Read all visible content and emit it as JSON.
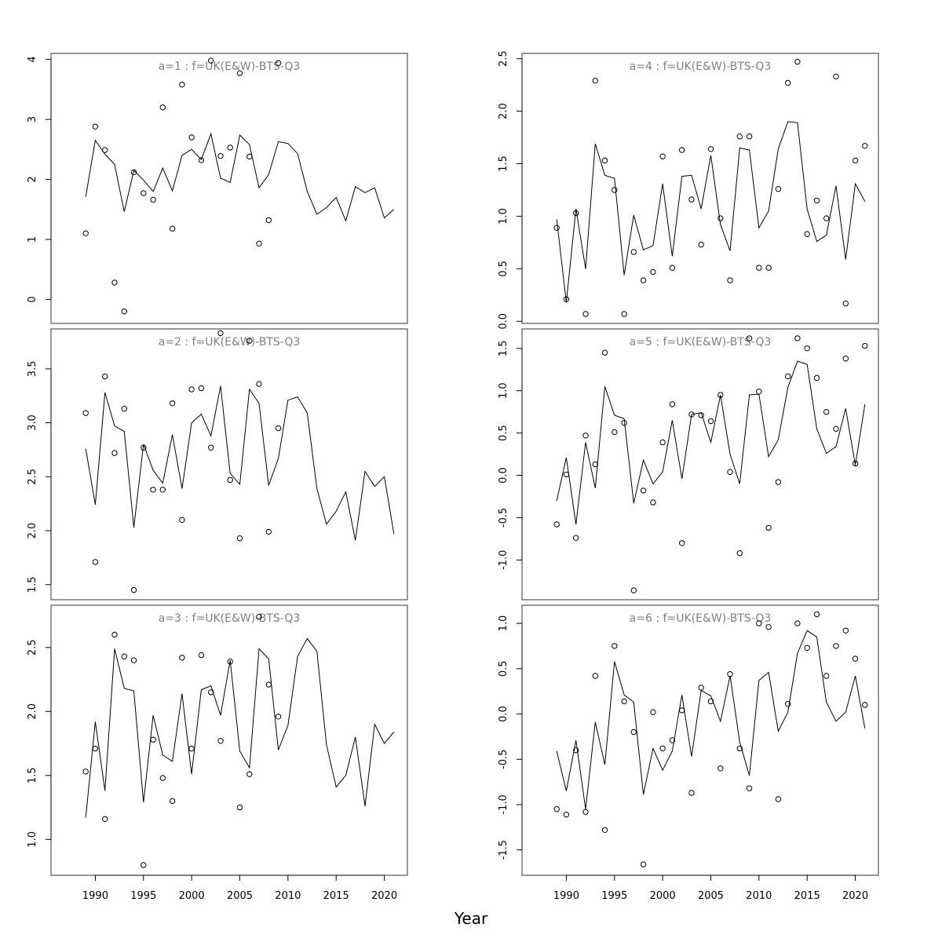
{
  "figure": {
    "xlabel": "Year"
  },
  "chart_data": [
    {
      "type": "line",
      "title": "a=1  :  f=UK(E&W)-BTS-Q3",
      "ylim": [
        -0.4,
        4.1
      ],
      "yticks": [
        0,
        1,
        2,
        3,
        4
      ],
      "ytick_labels": [
        "0",
        "1",
        "2",
        "3",
        "4"
      ],
      "xlim": [
        1985.4,
        2022.4
      ],
      "xticks": [
        1990,
        1995,
        2000,
        2005,
        2010,
        2015,
        2020
      ],
      "xtick_labels": [
        "1990",
        "1995",
        "2000",
        "2005",
        "2010",
        "2015",
        "2020"
      ],
      "show_xaxis": false,
      "series": [
        {
          "style": "line",
          "x": [
            1989,
            1990,
            1991,
            1992,
            1993,
            1994,
            1995,
            1996,
            1997,
            1998,
            1999,
            2000,
            2001,
            2002,
            2003,
            2004,
            2005,
            2006,
            2007,
            2008,
            2009,
            2010,
            2011,
            2012,
            2013,
            2014,
            2015,
            2016,
            2017,
            2018,
            2019,
            2020,
            2021
          ],
          "y": [
            1.71,
            2.65,
            2.42,
            2.25,
            1.46,
            2.15,
            1.99,
            1.8,
            2.19,
            1.81,
            2.4,
            2.5,
            2.33,
            2.76,
            2.02,
            1.95,
            2.74,
            2.58,
            1.86,
            2.08,
            2.63,
            2.6,
            2.43,
            1.8,
            1.42,
            1.53,
            1.7,
            1.31,
            1.88,
            1.78,
            1.86,
            1.36,
            1.5
          ]
        },
        {
          "style": "points",
          "x": [
            1989,
            1990,
            1991,
            1992,
            1993,
            1994,
            1995,
            1996,
            1997,
            1998,
            1999,
            2000,
            2001,
            2002,
            2003,
            2004,
            2005,
            2006,
            2007,
            2008,
            2009
          ],
          "y": [
            1.1,
            2.88,
            2.49,
            0.28,
            -0.2,
            2.12,
            1.77,
            1.66,
            3.2,
            1.18,
            3.58,
            2.7,
            2.32,
            3.98,
            2.39,
            2.53,
            3.77,
            2.38,
            0.93,
            1.32,
            3.94
          ]
        }
      ]
    },
    {
      "type": "line",
      "title": "a=4  :  f=UK(E&W)-BTS-Q3",
      "ylim": [
        -0.02,
        2.55
      ],
      "yticks": [
        0.0,
        0.5,
        1.0,
        1.5,
        2.0,
        2.5
      ],
      "ytick_labels": [
        "0.0",
        "0.5",
        "1.0",
        "1.5",
        "2.0",
        "2.5"
      ],
      "xlim": [
        1985.4,
        2022.4
      ],
      "xticks": [
        1990,
        1995,
        2000,
        2005,
        2010,
        2015,
        2020
      ],
      "xtick_labels": [
        "1990",
        "1995",
        "2000",
        "2005",
        "2010",
        "2015",
        "2020"
      ],
      "show_xaxis": false,
      "series": [
        {
          "style": "line",
          "x": [
            1989,
            1990,
            1991,
            1992,
            1993,
            1994,
            1995,
            1996,
            1997,
            1998,
            1999,
            2000,
            2001,
            2002,
            2003,
            2004,
            2005,
            2006,
            2007,
            2008,
            2009,
            2010,
            2011,
            2012,
            2013,
            2014,
            2015,
            2016,
            2017,
            2018,
            2019,
            2020,
            2021
          ],
          "y": [
            0.97,
            0.18,
            1.07,
            0.5,
            1.69,
            1.39,
            1.36,
            0.44,
            1.01,
            0.68,
            0.72,
            1.31,
            0.62,
            1.38,
            1.39,
            1.07,
            1.58,
            0.92,
            0.67,
            1.65,
            1.63,
            0.89,
            1.05,
            1.64,
            1.9,
            1.89,
            1.07,
            0.76,
            0.82,
            1.29,
            0.59,
            1.31,
            1.14
          ]
        },
        {
          "style": "points",
          "x": [
            1989,
            1990,
            1991,
            1992,
            1993,
            1994,
            1995,
            1996,
            1997,
            1998,
            1999,
            2000,
            2001,
            2002,
            2003,
            2004,
            2005,
            2006,
            2007,
            2008,
            2009,
            2010,
            2011,
            2012,
            2013,
            2014,
            2015,
            2016,
            2017,
            2018,
            2019,
            2020,
            2021
          ],
          "y": [
            0.89,
            0.21,
            1.03,
            0.07,
            2.29,
            1.53,
            1.25,
            0.07,
            0.66,
            0.39,
            0.47,
            1.57,
            0.51,
            1.63,
            1.16,
            0.73,
            1.64,
            0.98,
            0.39,
            1.76,
            1.76,
            0.51,
            0.51,
            1.26,
            2.27,
            2.47,
            0.83,
            1.15,
            0.98,
            2.33,
            0.17,
            1.53,
            1.67
          ]
        }
      ]
    },
    {
      "type": "line",
      "title": "a=2  :  f=UK(E&W)-BTS-Q3",
      "ylim": [
        1.36,
        3.87
      ],
      "yticks": [
        1.5,
        2.0,
        2.5,
        3.0,
        3.5
      ],
      "ytick_labels": [
        "1.5",
        "2.0",
        "2.5",
        "3.0",
        "3.5"
      ],
      "xlim": [
        1985.4,
        2022.4
      ],
      "xticks": [
        1990,
        1995,
        2000,
        2005,
        2010,
        2015,
        2020
      ],
      "xtick_labels": [
        "1990",
        "1995",
        "2000",
        "2005",
        "2010",
        "2015",
        "2020"
      ],
      "show_xaxis": false,
      "series": [
        {
          "style": "line",
          "x": [
            1989,
            1990,
            1991,
            1992,
            1993,
            1994,
            1995,
            1996,
            1997,
            1998,
            1999,
            2000,
            2001,
            2002,
            2003,
            2004,
            2005,
            2006,
            2007,
            2008,
            2009,
            2010,
            2011,
            2012,
            2013,
            2014,
            2015,
            2016,
            2017,
            2018,
            2019,
            2020,
            2021
          ],
          "y": [
            2.76,
            2.24,
            3.28,
            2.97,
            2.92,
            2.03,
            2.8,
            2.56,
            2.44,
            2.89,
            2.39,
            3.0,
            3.08,
            2.88,
            3.34,
            2.53,
            2.43,
            3.31,
            3.18,
            2.42,
            2.67,
            3.21,
            3.24,
            3.09,
            2.39,
            2.06,
            2.18,
            2.36,
            1.91,
            2.55,
            2.41,
            2.5,
            1.97
          ]
        },
        {
          "style": "points",
          "x": [
            1989,
            1990,
            1991,
            1992,
            1993,
            1994,
            1995,
            1996,
            1997,
            1998,
            1999,
            2000,
            2001,
            2002,
            2003,
            2004,
            2005,
            2006,
            2007,
            2008,
            2009
          ],
          "y": [
            3.09,
            1.71,
            3.43,
            2.72,
            3.13,
            1.45,
            2.77,
            2.38,
            2.38,
            3.18,
            2.1,
            3.31,
            3.32,
            2.77,
            3.83,
            2.47,
            1.93,
            3.76,
            3.36,
            1.99,
            2.95
          ]
        }
      ]
    },
    {
      "type": "line",
      "title": "a=5  :  f=UK(E&W)-BTS-Q3",
      "ylim": [
        -1.47,
        1.73
      ],
      "yticks": [
        -1.0,
        -0.5,
        0.0,
        0.5,
        1.0,
        1.5
      ],
      "ytick_labels": [
        "-1.0",
        "-0.5",
        "0.0",
        "0.5",
        "1.0",
        "1.5"
      ],
      "xlim": [
        1985.4,
        2022.4
      ],
      "xticks": [
        1990,
        1995,
        2000,
        2005,
        2010,
        2015,
        2020
      ],
      "xtick_labels": [
        "1990",
        "1995",
        "2000",
        "2005",
        "2010",
        "2015",
        "2020"
      ],
      "show_xaxis": false,
      "series": [
        {
          "style": "line",
          "x": [
            1989,
            1990,
            1991,
            1992,
            1993,
            1994,
            1995,
            1996,
            1997,
            1998,
            1999,
            2000,
            2001,
            2002,
            2003,
            2004,
            2005,
            2006,
            2007,
            2008,
            2009,
            2010,
            2011,
            2012,
            2013,
            2014,
            2015,
            2016,
            2017,
            2018,
            2019,
            2020,
            2021
          ],
          "y": [
            -0.3,
            0.21,
            -0.58,
            0.39,
            -0.15,
            1.05,
            0.71,
            0.67,
            -0.33,
            0.18,
            -0.1,
            0.04,
            0.65,
            -0.04,
            0.72,
            0.74,
            0.39,
            0.95,
            0.25,
            -0.1,
            0.95,
            0.96,
            0.22,
            0.42,
            1.04,
            1.35,
            1.31,
            0.55,
            0.26,
            0.34,
            0.79,
            0.12,
            0.84
          ]
        },
        {
          "style": "points",
          "x": [
            1989,
            1990,
            1991,
            1992,
            1993,
            1994,
            1995,
            1996,
            1997,
            1998,
            1999,
            2000,
            2001,
            2002,
            2003,
            2004,
            2005,
            2006,
            2007,
            2008,
            2009,
            2010,
            2011,
            2012,
            2013,
            2014,
            2015,
            2016,
            2017,
            2018,
            2019,
            2020,
            2021
          ],
          "y": [
            -0.58,
            0.01,
            -0.74,
            0.47,
            0.13,
            1.45,
            0.51,
            0.62,
            -1.36,
            -0.18,
            -0.32,
            0.39,
            0.84,
            -0.8,
            0.72,
            0.71,
            0.64,
            0.95,
            0.04,
            -0.92,
            1.62,
            0.99,
            -0.62,
            -0.08,
            1.17,
            1.62,
            1.5,
            1.15,
            0.75,
            0.55,
            1.38,
            0.14,
            1.53
          ]
        }
      ]
    },
    {
      "type": "line",
      "title": "a=3  :  f=UK(E&W)-BTS-Q3",
      "ylim": [
        0.72,
        2.83
      ],
      "yticks": [
        1.0,
        1.5,
        2.0,
        2.5
      ],
      "ytick_labels": [
        "1.0",
        "1.5",
        "2.0",
        "2.5"
      ],
      "xlim": [
        1985.4,
        2022.4
      ],
      "xticks": [
        1990,
        1995,
        2000,
        2005,
        2010,
        2015,
        2020
      ],
      "xtick_labels": [
        "1990",
        "1995",
        "2000",
        "2005",
        "2010",
        "2015",
        "2020"
      ],
      "show_xaxis": true,
      "series": [
        {
          "style": "line",
          "x": [
            1989,
            1990,
            1991,
            1992,
            1993,
            1994,
            1995,
            1996,
            1997,
            1998,
            1999,
            2000,
            2001,
            2002,
            2003,
            2004,
            2005,
            2006,
            2007,
            2008,
            2009,
            2010,
            2011,
            2012,
            2013,
            2014,
            2015,
            2016,
            2017,
            2018,
            2019,
            2020,
            2021
          ],
          "y": [
            1.17,
            1.92,
            1.38,
            2.49,
            2.18,
            2.16,
            1.29,
            1.97,
            1.66,
            1.61,
            2.14,
            1.51,
            2.17,
            2.2,
            1.97,
            2.4,
            1.69,
            1.56,
            2.49,
            2.41,
            1.7,
            1.89,
            2.43,
            2.57,
            2.47,
            1.74,
            1.41,
            1.5,
            1.8,
            1.26,
            1.9,
            1.75,
            1.84
          ]
        },
        {
          "style": "points",
          "x": [
            1989,
            1990,
            1991,
            1992,
            1993,
            1994,
            1995,
            1996,
            1997,
            1998,
            1999,
            2000,
            2001,
            2002,
            2003,
            2004,
            2005,
            2006,
            2007,
            2008,
            2009
          ],
          "y": [
            1.53,
            1.71,
            1.16,
            2.6,
            2.43,
            2.4,
            0.8,
            1.78,
            1.48,
            1.3,
            2.42,
            1.71,
            2.44,
            2.15,
            1.77,
            2.39,
            1.25,
            1.51,
            2.74,
            2.21,
            1.96
          ]
        }
      ]
    },
    {
      "type": "line",
      "title": "a=6  :  f=UK(E&W)-BTS-Q3",
      "ylim": [
        -1.78,
        1.2
      ],
      "yticks": [
        -1.5,
        -1.0,
        -0.5,
        0.0,
        0.5,
        1.0
      ],
      "ytick_labels": [
        "-1.5",
        "-1.0",
        "-0.5",
        "0.0",
        "0.5",
        "1.0"
      ],
      "xlim": [
        1985.4,
        2022.4
      ],
      "xticks": [
        1990,
        1995,
        2000,
        2005,
        2010,
        2015,
        2020
      ],
      "xtick_labels": [
        "1990",
        "1995",
        "2000",
        "2005",
        "2010",
        "2015",
        "2020"
      ],
      "show_xaxis": true,
      "series": [
        {
          "style": "line",
          "x": [
            1989,
            1990,
            1991,
            1992,
            1993,
            1994,
            1995,
            1996,
            1997,
            1998,
            1999,
            2000,
            2001,
            2002,
            2003,
            2004,
            2005,
            2006,
            2007,
            2008,
            2009,
            2010,
            2011,
            2012,
            2013,
            2014,
            2015,
            2016,
            2017,
            2018,
            2019,
            2020,
            2021
          ],
          "y": [
            -0.41,
            -0.85,
            -0.29,
            -1.05,
            -0.09,
            -0.56,
            0.58,
            0.21,
            0.13,
            -0.89,
            -0.38,
            -0.62,
            -0.41,
            0.21,
            -0.47,
            0.26,
            0.2,
            -0.08,
            0.42,
            -0.31,
            -0.68,
            0.37,
            0.46,
            -0.19,
            0.02,
            0.67,
            0.92,
            0.85,
            0.13,
            -0.08,
            0.02,
            0.42,
            -0.16
          ]
        },
        {
          "style": "points",
          "x": [
            1989,
            1990,
            1991,
            1992,
            1993,
            1994,
            1995,
            1996,
            1997,
            1998,
            1999,
            2000,
            2001,
            2002,
            2003,
            2004,
            2005,
            2006,
            2007,
            2008,
            2009,
            2010,
            2011,
            2012,
            2013,
            2014,
            2015,
            2016,
            2017,
            2018,
            2019,
            2020,
            2021
          ],
          "y": [
            -1.05,
            -1.11,
            -0.4,
            -1.08,
            0.42,
            -1.28,
            0.75,
            0.14,
            -0.2,
            -1.66,
            0.02,
            -0.38,
            -0.29,
            0.04,
            -0.87,
            0.29,
            0.14,
            -0.6,
            0.44,
            -0.38,
            -0.82,
            1.0,
            0.96,
            -0.94,
            0.11,
            1.0,
            0.73,
            1.1,
            0.42,
            0.75,
            0.92,
            0.61,
            0.1
          ]
        }
      ]
    }
  ]
}
